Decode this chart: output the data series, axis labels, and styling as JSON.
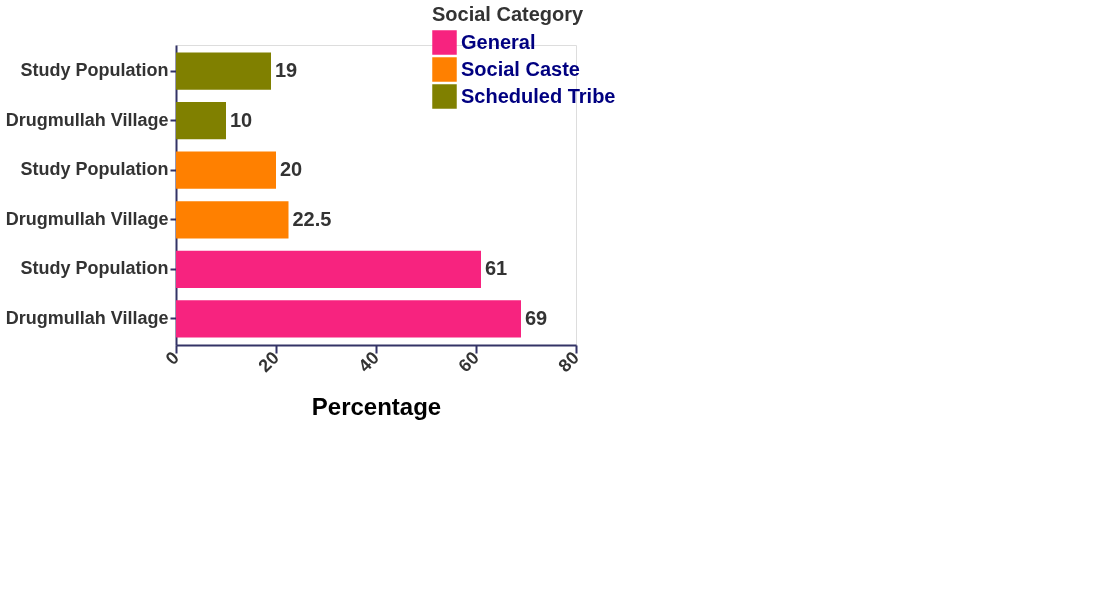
{
  "chart_data": {
    "type": "bar",
    "orientation": "horizontal",
    "xlabel": "Percentage",
    "legend_title": "Social Category",
    "legend": "top right",
    "data_labels": true,
    "grid": false,
    "categories": [
      "Study Population",
      "Drugmullah Village",
      "Study Population",
      "Drugmullah Village",
      "Study Population",
      "Drugmullah Village"
    ],
    "series": [
      {
        "name": "General",
        "color": "#f7237f",
        "values": [
          null,
          null,
          null,
          null,
          61,
          69
        ]
      },
      {
        "name": "Social Caste",
        "color": "#ff8000",
        "values": [
          null,
          null,
          20,
          22.5,
          null,
          null
        ]
      },
      {
        "name": "Scheduled Tribe",
        "color": "#808000",
        "values": [
          19,
          10,
          null,
          null,
          null,
          null
        ]
      }
    ],
    "xlim": [
      0,
      80
    ],
    "xticks": [
      0,
      20,
      40,
      60,
      80
    ]
  }
}
